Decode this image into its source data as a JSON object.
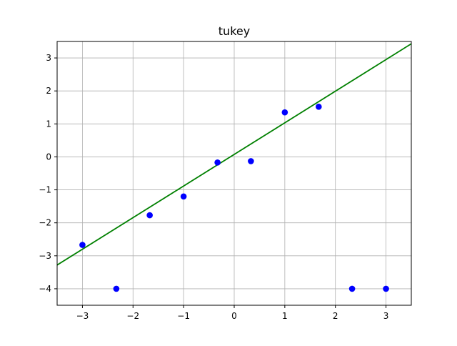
{
  "chart_data": {
    "type": "scatter",
    "title": "tukey",
    "xlabel": "",
    "ylabel": "",
    "xlim": [
      -3.5,
      3.5
    ],
    "ylim": [
      -4.5,
      3.5
    ],
    "x_ticks": [
      -3,
      -2,
      -1,
      0,
      1,
      2,
      3
    ],
    "y_ticks": [
      -4,
      -3,
      -2,
      -1,
      0,
      1,
      2,
      3
    ],
    "x_tick_labels": [
      "−3",
      "−2",
      "−1",
      "0",
      "1",
      "2",
      "3"
    ],
    "y_tick_labels": [
      "−4",
      "−3",
      "−2",
      "−1",
      "0",
      "1",
      "2",
      "3"
    ],
    "grid": true,
    "legend": "none",
    "series": [
      {
        "type": "scatter",
        "color": "#0000ff",
        "points": [
          {
            "x": -3.0,
            "y": -2.67
          },
          {
            "x": -2.33,
            "y": -4.0
          },
          {
            "x": -1.67,
            "y": -1.77
          },
          {
            "x": -1.0,
            "y": -1.2
          },
          {
            "x": -0.33,
            "y": -0.17
          },
          {
            "x": 0.33,
            "y": -0.13
          },
          {
            "x": 1.0,
            "y": 1.35
          },
          {
            "x": 1.67,
            "y": 1.52
          },
          {
            "x": 2.33,
            "y": -4.0
          },
          {
            "x": 3.0,
            "y": -4.0
          }
        ]
      },
      {
        "type": "line",
        "color": "#008000",
        "points": [
          {
            "x": -3.5,
            "y": -3.28
          },
          {
            "x": 3.5,
            "y": 3.43
          }
        ]
      }
    ]
  }
}
